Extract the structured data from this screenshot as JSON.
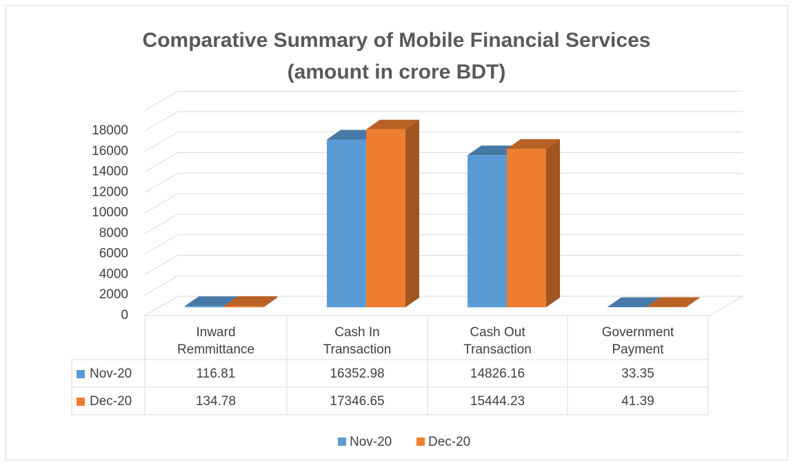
{
  "chart_data": {
    "type": "bar3d",
    "title": "Comparative Summary of Mobile Financial Services (amount in crore BDT)",
    "categories": [
      "Inward Remmittance",
      "Cash In Transaction",
      "Cash Out Transaction",
      "Government Payment"
    ],
    "series": [
      {
        "name": "Nov-20",
        "color": "#5b9bd5",
        "values": [
          116.81,
          16352.98,
          14826.16,
          33.35
        ]
      },
      {
        "name": "Dec-20",
        "color": "#ed7d31",
        "values": [
          134.78,
          17346.65,
          15444.23,
          41.39
        ]
      }
    ],
    "ylim": [
      0,
      20000
    ],
    "yticks": [
      0,
      2000,
      4000,
      6000,
      8000,
      10000,
      12000,
      14000,
      16000,
      18000
    ],
    "grid": true,
    "legend": "bottom",
    "data_table": true
  }
}
